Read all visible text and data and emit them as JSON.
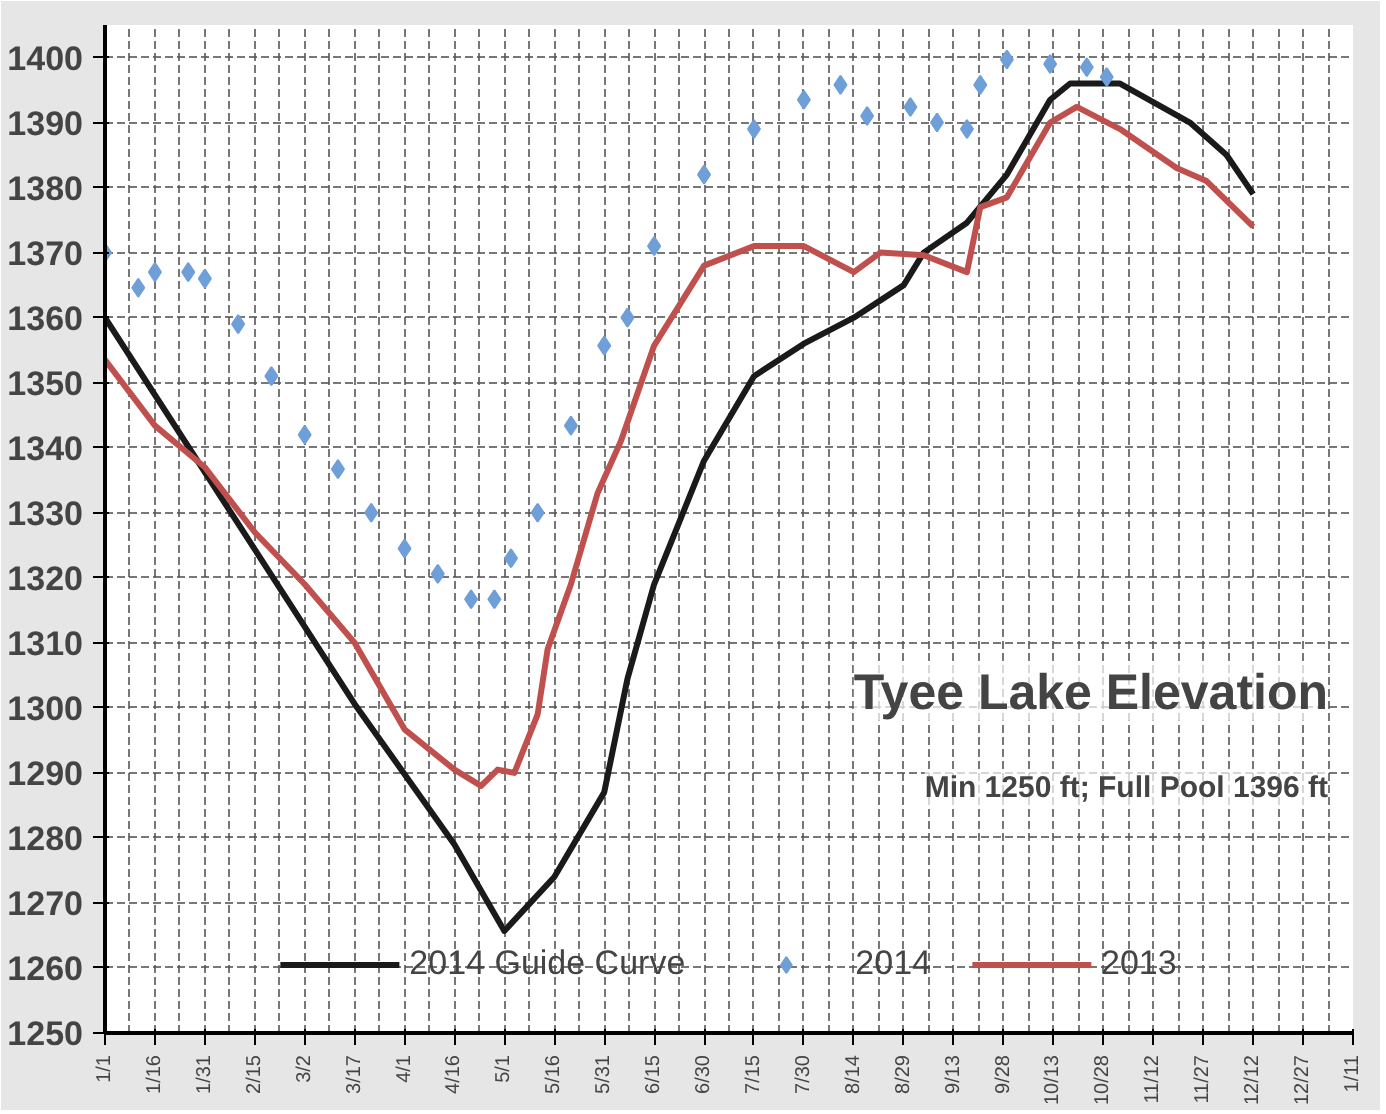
{
  "chart_data": {
    "type": "line",
    "title": "Tyee Lake Elevation",
    "subtitle": "Min 1250 ft; Full Pool 1396 ft",
    "xlim": [
      "2014-01-01",
      "2015-01-11"
    ],
    "ylim": [
      1250,
      1405
    ],
    "xticks": [
      {
        "value": "2014-01-01",
        "label": "1/1"
      },
      {
        "value": "2014-01-16",
        "label": "1/16"
      },
      {
        "value": "2014-01-31",
        "label": "1/31"
      },
      {
        "value": "2014-02-15",
        "label": "2/15"
      },
      {
        "value": "2014-03-02",
        "label": "3/2"
      },
      {
        "value": "2014-03-17",
        "label": "3/17"
      },
      {
        "value": "2014-04-01",
        "label": "4/1"
      },
      {
        "value": "2014-04-16",
        "label": "4/16"
      },
      {
        "value": "2014-05-01",
        "label": "5/1"
      },
      {
        "value": "2014-05-16",
        "label": "5/16"
      },
      {
        "value": "2014-05-31",
        "label": "5/31"
      },
      {
        "value": "2014-06-15",
        "label": "6/15"
      },
      {
        "value": "2014-06-30",
        "label": "6/30"
      },
      {
        "value": "2014-07-15",
        "label": "7/15"
      },
      {
        "value": "2014-07-30",
        "label": "7/30"
      },
      {
        "value": "2014-08-14",
        "label": "8/14"
      },
      {
        "value": "2014-08-29",
        "label": "8/29"
      },
      {
        "value": "2014-09-13",
        "label": "9/13"
      },
      {
        "value": "2014-09-28",
        "label": "9/28"
      },
      {
        "value": "2014-10-13",
        "label": "10/13"
      },
      {
        "value": "2014-10-28",
        "label": "10/28"
      },
      {
        "value": "2014-11-12",
        "label": "11/12"
      },
      {
        "value": "2014-11-27",
        "label": "11/27"
      },
      {
        "value": "2014-12-12",
        "label": "12/12"
      },
      {
        "value": "2014-12-27",
        "label": "12/27"
      },
      {
        "value": "2015-01-11",
        "label": "1/11"
      }
    ],
    "yticks": [
      1250,
      1260,
      1270,
      1280,
      1290,
      1300,
      1310,
      1320,
      1330,
      1340,
      1350,
      1360,
      1370,
      1380,
      1390,
      1400
    ],
    "grid": true,
    "legend": "bottom",
    "series": [
      {
        "name": "2014 Guide Curve",
        "color": "#1a1a1a",
        "x": [
          "2014-01-01",
          "2014-03-17",
          "2014-04-16",
          "2014-05-01",
          "2014-05-16",
          "2014-05-31",
          "2014-06-07",
          "2014-06-15",
          "2014-06-30",
          "2014-07-15",
          "2014-07-30",
          "2014-08-14",
          "2014-08-29",
          "2014-09-04",
          "2014-09-17",
          "2014-09-29",
          "2014-10-12",
          "2014-10-18",
          "2014-11-02",
          "2014-11-23",
          "2014-12-04",
          "2014-12-12"
        ],
        "values": [
          1360,
          1300.6,
          1279,
          1265.7,
          1274,
          1287,
          1304.5,
          1319,
          1338,
          1351,
          1356,
          1360,
          1365,
          1370,
          1374.6,
          1382,
          1393.5,
          1396,
          1396,
          1390,
          1385,
          1379
        ]
      },
      {
        "name": "2014",
        "type": "scatter",
        "marker": "diamond",
        "color": "#6f9fd8",
        "x": [
          "2014-01-01",
          "2014-01-11",
          "2014-01-16",
          "2014-01-26",
          "2014-01-31",
          "2014-02-10",
          "2014-02-20",
          "2014-03-02",
          "2014-03-12",
          "2014-03-22",
          "2014-04-01",
          "2014-04-11",
          "2014-04-21",
          "2014-04-28",
          "2014-05-03",
          "2014-05-11",
          "2014-05-21",
          "2014-05-31",
          "2014-06-07",
          "2014-06-15",
          "2014-06-30",
          "2014-07-15",
          "2014-07-30",
          "2014-08-10",
          "2014-08-18",
          "2014-08-31",
          "2014-09-08",
          "2014-09-17",
          "2014-09-21",
          "2014-09-29",
          "2014-10-12",
          "2014-10-23",
          "2014-10-29"
        ],
        "values": [
          1370,
          1364.6,
          1367,
          1367,
          1366,
          1359,
          1351,
          1342,
          1336.7,
          1330,
          1324.5,
          1320.6,
          1316.7,
          1316.7,
          1323,
          1330,
          1343.4,
          1355.7,
          1360,
          1371,
          1382,
          1389,
          1393.5,
          1395.8,
          1391,
          1392.4,
          1390,
          1389,
          1395.8,
          1399.7,
          1399,
          1398.5,
          1397
        ]
      },
      {
        "name": "2013",
        "color": "#c0504d",
        "x": [
          "2014-01-01",
          "2014-01-16",
          "2014-01-31",
          "2014-02-15",
          "2014-03-02",
          "2014-03-17",
          "2014-04-01",
          "2014-04-16",
          "2014-04-24",
          "2014-04-29",
          "2014-05-04",
          "2014-05-11",
          "2014-05-14",
          "2014-05-21",
          "2014-05-29",
          "2014-06-05",
          "2014-06-15",
          "2014-06-30",
          "2014-07-15",
          "2014-07-30",
          "2014-08-14",
          "2014-08-22",
          "2014-09-04",
          "2014-09-17",
          "2014-09-21",
          "2014-09-29",
          "2014-10-12",
          "2014-10-20",
          "2014-11-02",
          "2014-11-19",
          "2014-11-28",
          "2014-12-12"
        ],
        "values": [
          1353.5,
          1343.4,
          1337,
          1327,
          1319,
          1310,
          1296.7,
          1290.5,
          1288,
          1290.5,
          1290,
          1299,
          1309,
          1319,
          1333,
          1341,
          1355.7,
          1368,
          1371,
          1371,
          1367,
          1370,
          1369.6,
          1367,
          1377,
          1378.5,
          1390,
          1392.4,
          1389,
          1383,
          1381,
          1374
        ]
      }
    ]
  }
}
